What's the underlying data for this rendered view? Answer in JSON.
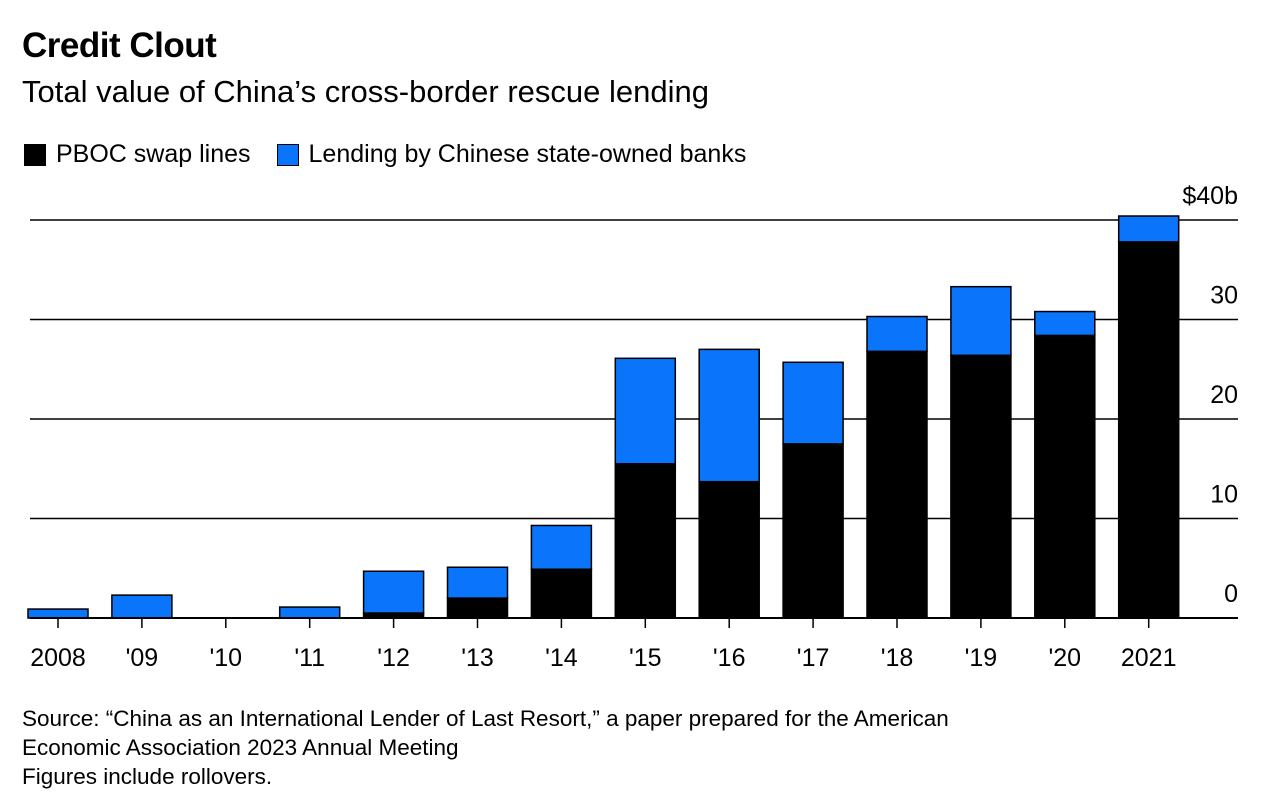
{
  "title": "Credit Clout",
  "subtitle": "Total value of China’s cross-border rescue lending",
  "legend": {
    "items": [
      {
        "label": "PBOC swap lines",
        "color": "#000000"
      },
      {
        "label": "Lending by Chinese state-owned banks",
        "color": "#0a74fa"
      }
    ]
  },
  "source": {
    "line1": "Source: “China as an International Lender of Last Resort,” a paper prepared for the American",
    "line2": "Economic Association 2023 Annual Meeting",
    "note": "Figures include rollovers."
  },
  "chart_data": {
    "type": "bar",
    "stacked": true,
    "categories": [
      "2008",
      "'09",
      "'10",
      "'11",
      "'12",
      "'13",
      "'14",
      "'15",
      "'16",
      "'17",
      "'18",
      "'19",
      "'20",
      "2021"
    ],
    "series": [
      {
        "name": "PBOC swap lines",
        "color": "#000000",
        "values": [
          0,
          0,
          0,
          0,
          0.5,
          2,
          4.9,
          15.5,
          13.7,
          17.5,
          26.8,
          26.4,
          28.4,
          37.8
        ]
      },
      {
        "name": "Lending by Chinese state-owned banks",
        "color": "#0a74fa",
        "values": [
          0.9,
          2.3,
          0,
          1.1,
          4.2,
          3.1,
          4.4,
          10.6,
          13.3,
          8.2,
          3.5,
          6.9,
          2.4,
          2.6
        ]
      }
    ],
    "yticks": [
      {
        "value": 0,
        "label": "0"
      },
      {
        "value": 10,
        "label": "10"
      },
      {
        "value": 20,
        "label": "20"
      },
      {
        "value": 30,
        "label": "30"
      },
      {
        "value": 40,
        "label": "$40b"
      }
    ],
    "ylim": [
      0,
      40
    ],
    "grid": true,
    "yaxis_position": "right",
    "legend_position": "top-left"
  }
}
